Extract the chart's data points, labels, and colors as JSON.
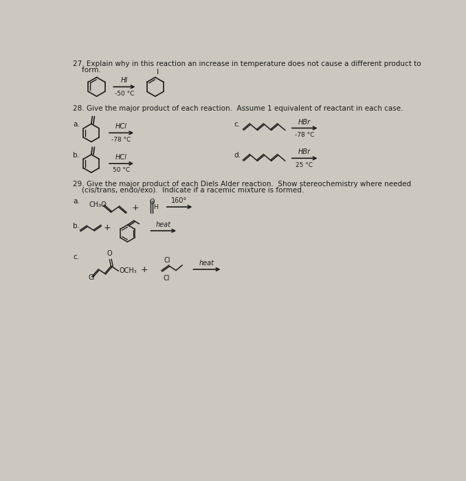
{
  "bg_color": "#ccc8bf",
  "text_color": "#1a1a1a",
  "fig_width": 6.78,
  "fig_height": 7.0,
  "dpi": 100,
  "q27_line1": "27. Explain why in this reaction an increase in temperature does not cause a different product to",
  "q27_line2": "    form.",
  "q28_text": "28. Give the major product of each reaction.  Assume 1 equivalent of reactant in each case.",
  "q29_line1": "29. Give the major product of each Diels Alder reaction.  Show stereochemistry where needed",
  "q29_line2": "    (cis/trans, endo/exo).  Indicate if a racemic mixture is formed.",
  "font_size_main": 7.5,
  "font_size_chem": 7.0,
  "font_size_label": 6.5
}
